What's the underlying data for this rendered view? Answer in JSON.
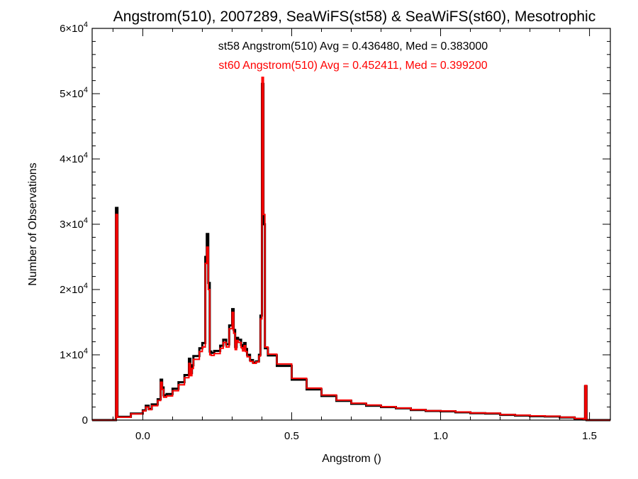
{
  "chart_data": {
    "type": "line",
    "title": "Angstrom(510), 2007289, SeaWiFS(st58) & SeaWiFS(st60), Mesotrophic",
    "xlabel": "Angstrom ()",
    "ylabel": "Number of Observations",
    "xlim": [
      -0.17,
      1.57
    ],
    "ylim": [
      0,
      60000
    ],
    "x_ticks": [
      {
        "value": 0.0,
        "label": "0.0"
      },
      {
        "value": 0.5,
        "label": "0.5"
      },
      {
        "value": 1.0,
        "label": "1.0"
      },
      {
        "value": 1.5,
        "label": "1.5"
      }
    ],
    "y_ticks": [
      {
        "value": 0,
        "mantissa": "0",
        "exponent": ""
      },
      {
        "value": 10000,
        "mantissa": "1×10",
        "exponent": "4"
      },
      {
        "value": 20000,
        "mantissa": "2×10",
        "exponent": "4"
      },
      {
        "value": 30000,
        "mantissa": "3×10",
        "exponent": "4"
      },
      {
        "value": 40000,
        "mantissa": "4×10",
        "exponent": "4"
      },
      {
        "value": 50000,
        "mantissa": "5×10",
        "exponent": "4"
      },
      {
        "value": 60000,
        "mantissa": "6×10",
        "exponent": "4"
      }
    ],
    "legend_placement": "top-center",
    "annotations": [
      {
        "text": "st58 Angstrom(510) Avg = 0.436480, Med = 0.383000",
        "color": "#000000"
      },
      {
        "text": "st60 Angstrom(510) Avg = 0.452411, Med = 0.399200",
        "color": "#ff0000"
      }
    ],
    "series": [
      {
        "color": "#000000",
        "x": [
          -0.17,
          -0.09,
          -0.085,
          -0.04,
          0.0,
          0.01,
          0.02,
          0.03,
          0.05,
          0.06,
          0.065,
          0.07,
          0.08,
          0.1,
          0.12,
          0.14,
          0.155,
          0.16,
          0.165,
          0.17,
          0.19,
          0.2,
          0.21,
          0.215,
          0.22,
          0.225,
          0.23,
          0.24,
          0.26,
          0.27,
          0.28,
          0.29,
          0.3,
          0.305,
          0.31,
          0.315,
          0.32,
          0.33,
          0.335,
          0.34,
          0.345,
          0.35,
          0.36,
          0.37,
          0.38,
          0.39,
          0.395,
          0.4,
          0.405,
          0.41,
          0.42,
          0.45,
          0.5,
          0.55,
          0.6,
          0.65,
          0.7,
          0.75,
          0.8,
          0.85,
          0.9,
          0.95,
          1.0,
          1.05,
          1.1,
          1.15,
          1.2,
          1.25,
          1.3,
          1.35,
          1.4,
          1.45,
          1.48,
          1.485,
          1.49,
          1.57
        ],
        "y": [
          0,
          32500,
          500,
          1000,
          1500,
          2200,
          1700,
          2400,
          3200,
          6200,
          5000,
          3800,
          4000,
          4800,
          5800,
          6900,
          9400,
          7200,
          8400,
          9800,
          11000,
          11800,
          25000,
          28500,
          21000,
          10500,
          10300,
          10600,
          11400,
          12300,
          11600,
          14500,
          17000,
          13800,
          11200,
          12600,
          12300,
          11500,
          11000,
          11800,
          10900,
          10000,
          9200,
          8800,
          9000,
          10000,
          16000,
          51500,
          30000,
          11000,
          9900,
          8300,
          6200,
          4700,
          3700,
          2950,
          2500,
          2200,
          2000,
          1800,
          1550,
          1400,
          1350,
          1200,
          1050,
          1000,
          800,
          700,
          600,
          550,
          400,
          200,
          100,
          5200,
          0,
          0
        ]
      },
      {
        "color": "#ff0000",
        "x": [
          -0.17,
          -0.09,
          -0.085,
          -0.04,
          0.0,
          0.01,
          0.02,
          0.03,
          0.05,
          0.06,
          0.065,
          0.07,
          0.08,
          0.1,
          0.12,
          0.14,
          0.155,
          0.16,
          0.165,
          0.17,
          0.19,
          0.2,
          0.21,
          0.215,
          0.22,
          0.225,
          0.23,
          0.24,
          0.26,
          0.27,
          0.28,
          0.29,
          0.3,
          0.305,
          0.31,
          0.315,
          0.32,
          0.33,
          0.335,
          0.34,
          0.345,
          0.35,
          0.36,
          0.37,
          0.38,
          0.39,
          0.395,
          0.4,
          0.405,
          0.41,
          0.42,
          0.45,
          0.5,
          0.55,
          0.6,
          0.65,
          0.7,
          0.75,
          0.8,
          0.85,
          0.9,
          0.95,
          1.0,
          1.05,
          1.1,
          1.15,
          1.2,
          1.25,
          1.3,
          1.35,
          1.4,
          1.45,
          1.48,
          1.485,
          1.49,
          1.57
        ],
        "y": [
          0,
          31500,
          450,
          950,
          1400,
          2000,
          1600,
          2200,
          3000,
          5800,
          4700,
          3500,
          3700,
          4500,
          5400,
          6500,
          8700,
          6800,
          7900,
          9300,
          10500,
          11200,
          24000,
          26500,
          20000,
          10000,
          9900,
          10200,
          11000,
          11900,
          11200,
          14000,
          16500,
          13300,
          10800,
          12200,
          11900,
          11100,
          10600,
          11400,
          10500,
          9700,
          9000,
          8700,
          8900,
          9800,
          15500,
          52500,
          31500,
          11200,
          10100,
          8600,
          6400,
          4900,
          3850,
          3050,
          2600,
          2300,
          2050,
          1850,
          1600,
          1450,
          1400,
          1250,
          1100,
          1050,
          850,
          750,
          650,
          600,
          450,
          250,
          150,
          5300,
          0,
          0
        ]
      }
    ]
  }
}
